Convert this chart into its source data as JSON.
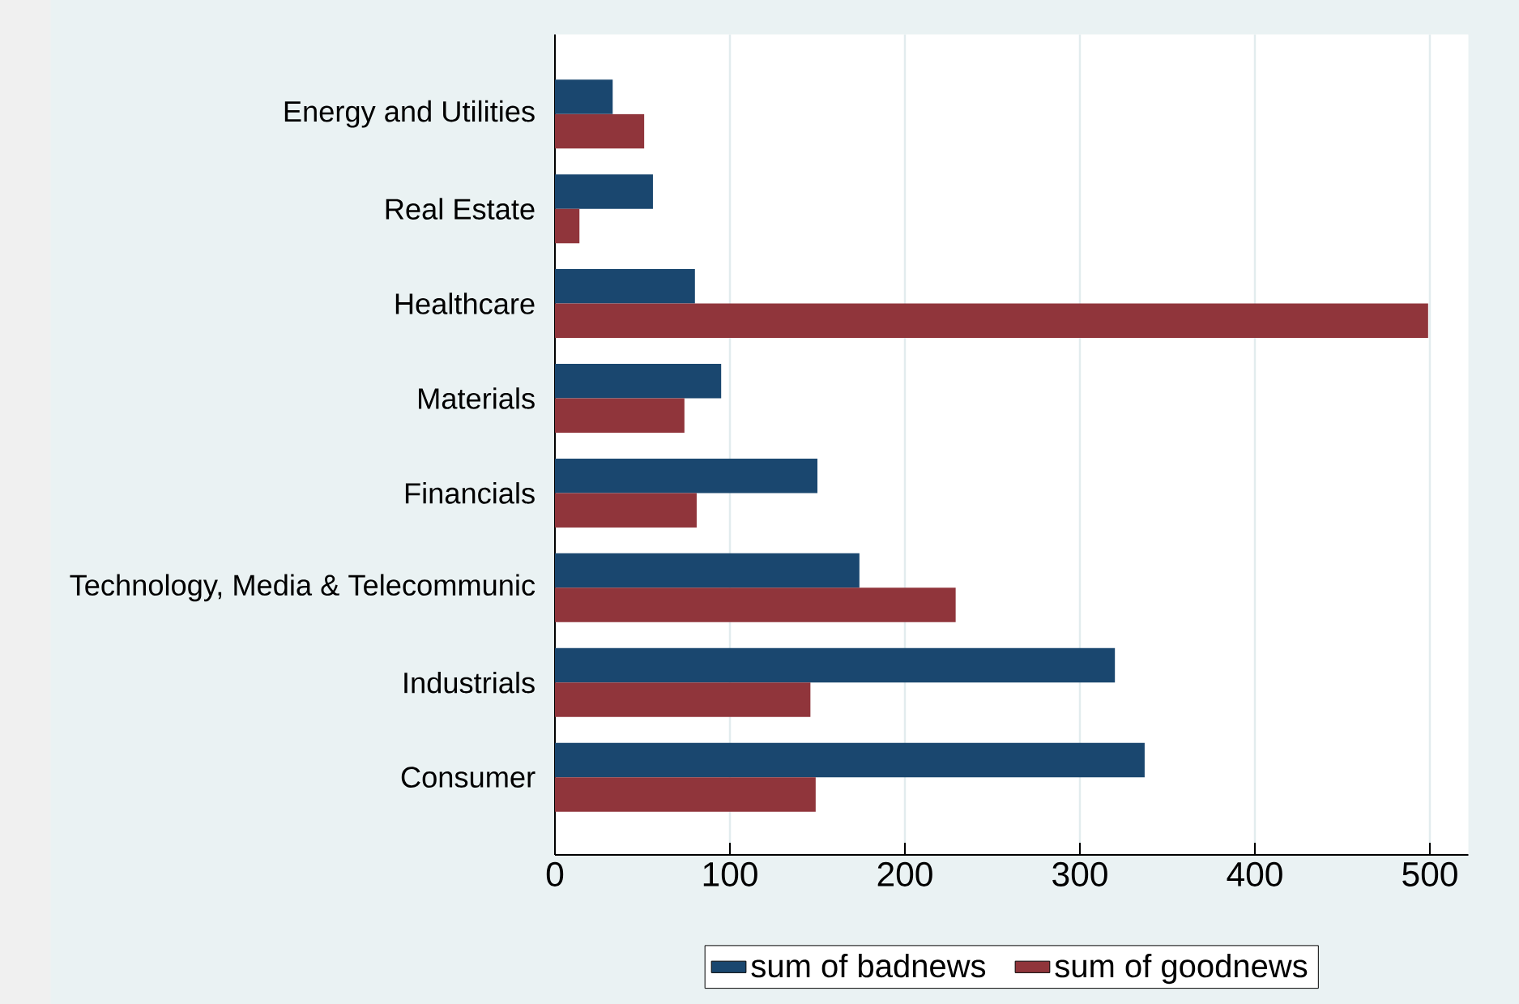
{
  "chart_data": {
    "type": "bar",
    "orientation": "horizontal",
    "categories": [
      "Energy and Utilities",
      "Real Estate",
      "Healthcare",
      "Materials",
      "Financials",
      "Technology, Media & Telecommunic",
      "Industrials",
      "Consumer"
    ],
    "series": [
      {
        "name": "sum of badnews",
        "color": "#1a476f",
        "values": [
          33,
          56,
          80,
          95,
          150,
          174,
          320,
          337
        ]
      },
      {
        "name": "sum of goodnews",
        "color": "#90353b",
        "values": [
          51,
          14,
          499,
          74,
          81,
          229,
          146,
          149
        ]
      }
    ],
    "xlim": [
      0,
      522
    ],
    "xticks": [
      0,
      100,
      200,
      300,
      400,
      500
    ],
    "grid": "x",
    "legend": "bottom"
  }
}
